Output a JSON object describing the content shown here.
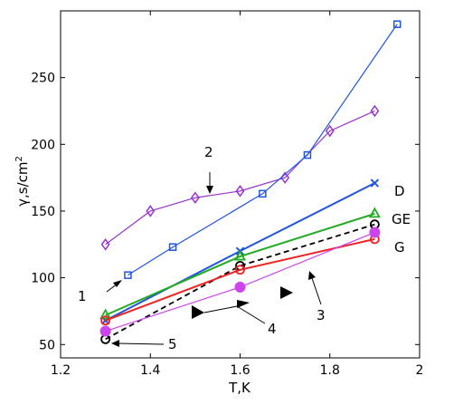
{
  "chart_data": {
    "type": "line",
    "title": "",
    "xlabel": "T,K",
    "ylabel_main": "γ,s/cm",
    "ylabel_sup": "2",
    "xlim": [
      1.2,
      2.0
    ],
    "ylim": [
      40,
      300
    ],
    "x_ticks": [
      1.2,
      1.4,
      1.6,
      1.8,
      2.0
    ],
    "x_tick_labels": [
      "1.2",
      "1.4",
      "1.6",
      "1.8",
      "2"
    ],
    "y_ticks": [
      50,
      100,
      150,
      200,
      250
    ],
    "y_tick_labels": [
      "50",
      "100",
      "150",
      "200",
      "250"
    ],
    "grid": false,
    "legend": "none",
    "series": [
      {
        "key": "magenta-diamonds",
        "color": "#9933cc",
        "marker": "diamond",
        "style": "solid",
        "x": [
          1.3,
          1.4,
          1.5,
          1.6,
          1.7,
          1.8,
          1.9
        ],
        "y": [
          125,
          150,
          160,
          165,
          175,
          210,
          225
        ]
      },
      {
        "key": "blue-squares",
        "color": "#2255dd",
        "marker": "square",
        "style": "solid",
        "x": [
          1.35,
          1.45,
          1.65,
          1.75,
          1.95
        ],
        "y": [
          102,
          123,
          163,
          192,
          290
        ]
      },
      {
        "name": "D",
        "color": "#2255dd",
        "marker": "x",
        "style": "solid",
        "width": 2,
        "x": [
          1.3,
          1.6,
          1.9
        ],
        "y": [
          68,
          120,
          171
        ]
      },
      {
        "name": "GE",
        "color": "#22aa22",
        "marker": "triangle",
        "style": "solid",
        "width": 2,
        "x": [
          1.3,
          1.6,
          1.9
        ],
        "y": [
          72,
          116,
          148
        ]
      },
      {
        "key": "black-dashed",
        "color": "#000000",
        "marker": "circle-open",
        "style": "dashed",
        "width": 1.8,
        "x": [
          1.3,
          1.6,
          1.9
        ],
        "y": [
          54,
          109,
          140
        ]
      },
      {
        "name": "G",
        "color": "#ee2222",
        "marker": "circle-open",
        "style": "solid",
        "width": 2,
        "x": [
          1.3,
          1.6,
          1.9
        ],
        "y": [
          68,
          106,
          129
        ]
      },
      {
        "key": "magenta-dots",
        "color": "#cc44ee",
        "marker": "circle-filled",
        "style": "solid",
        "x": [
          1.3,
          1.6,
          1.9
        ],
        "y": [
          60,
          93,
          134
        ]
      }
    ],
    "annotations": [
      {
        "text": "1"
      },
      {
        "text": "2"
      },
      {
        "text": "3"
      },
      {
        "text": "4"
      },
      {
        "text": "5"
      }
    ]
  }
}
